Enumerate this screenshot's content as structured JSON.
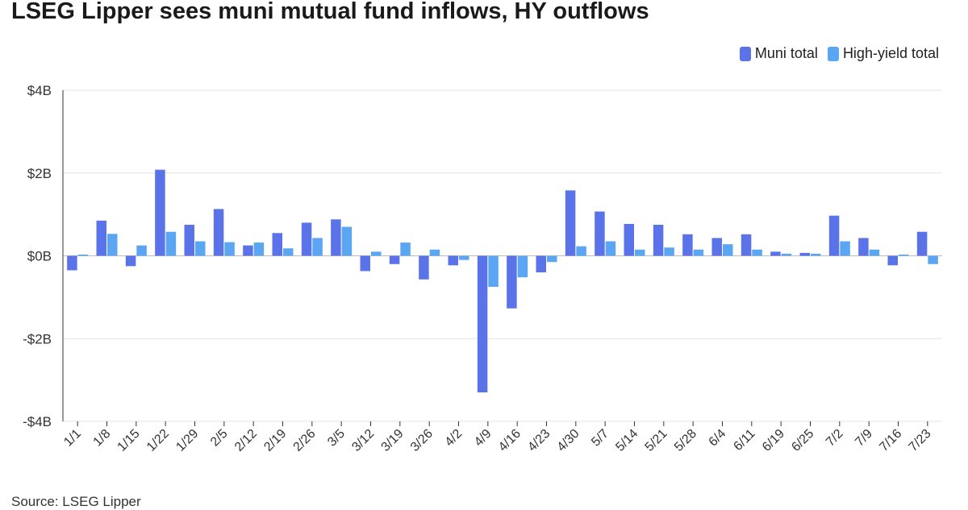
{
  "title": "LSEG Lipper sees muni mutual fund inflows, HY outflows",
  "source": "Source: LSEG Lipper",
  "colors": {
    "muni": "#5b73e8",
    "hy": "#5aa6f2",
    "grid": "#e4e4e4",
    "axis": "#333333"
  },
  "chart_data": {
    "type": "bar",
    "title": "LSEG Lipper sees muni mutual fund inflows, HY outflows",
    "xlabel": "",
    "ylabel": "",
    "ylim": [
      -4,
      4
    ],
    "yticks": [
      4,
      2,
      0,
      -2,
      -4
    ],
    "ytick_labels": [
      "$4B",
      "$2B",
      "$0B",
      "-$2B",
      "-$4B"
    ],
    "legend": "top-right",
    "grid": true,
    "categories": [
      "1/1",
      "1/8",
      "1/15",
      "1/22",
      "1/29",
      "2/5",
      "2/12",
      "2/19",
      "2/26",
      "3/5",
      "3/12",
      "3/19",
      "3/26",
      "4/2",
      "4/9",
      "4/16",
      "4/23",
      "4/30",
      "5/7",
      "5/14",
      "5/21",
      "5/28",
      "6/4",
      "6/11",
      "6/19",
      "6/25",
      "7/2",
      "7/9",
      "7/16",
      "7/23"
    ],
    "series": [
      {
        "name": "Muni total",
        "values": [
          -0.35,
          0.85,
          -0.25,
          2.08,
          0.75,
          1.13,
          0.25,
          0.55,
          0.8,
          0.88,
          -0.37,
          -0.2,
          -0.57,
          -0.23,
          -3.3,
          -1.27,
          -0.4,
          1.58,
          1.07,
          0.77,
          0.75,
          0.52,
          0.43,
          0.52,
          0.1,
          0.07,
          0.97,
          0.43,
          -0.23,
          0.58
        ]
      },
      {
        "name": "High-yield total",
        "values": [
          0.03,
          0.53,
          0.25,
          0.58,
          0.35,
          0.33,
          0.32,
          0.18,
          0.43,
          0.7,
          0.1,
          0.32,
          0.15,
          -0.1,
          -0.75,
          -0.52,
          -0.15,
          0.23,
          0.35,
          0.15,
          0.2,
          0.15,
          0.28,
          0.15,
          0.05,
          0.05,
          0.35,
          0.15,
          0.03,
          -0.2
        ]
      }
    ]
  }
}
